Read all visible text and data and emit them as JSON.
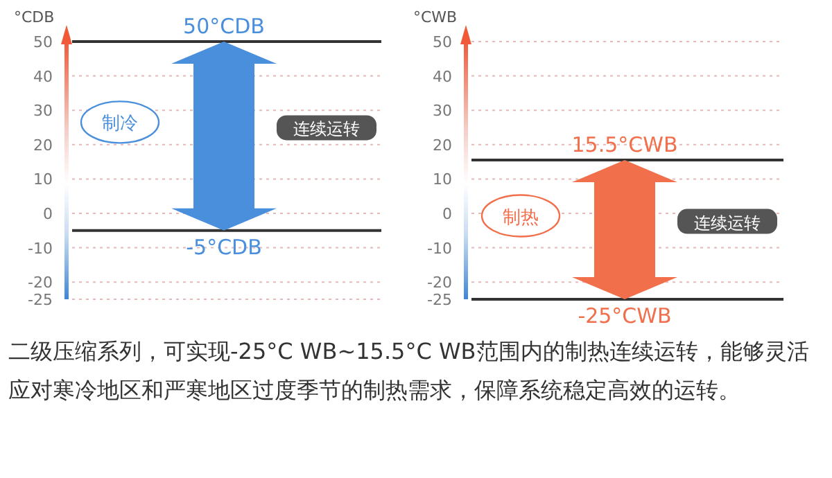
{
  "chart_data": [
    {
      "type": "bar",
      "categories": [
        null
      ],
      "values": [
        55
      ],
      "base": [
        -5
      ],
      "color": "#4a8fdc",
      "ylabel": "°CDB",
      "ylim": [
        -25,
        50
      ],
      "yticks": [
        -25,
        -20,
        -10,
        0,
        10,
        20,
        30,
        40,
        50
      ],
      "grid": "y",
      "ref_lines": [
        {
          "axis": "y",
          "value": 50,
          "color": "#333333"
        },
        {
          "axis": "y",
          "value": -5,
          "color": "#333333"
        }
      ],
      "annotations": [
        {
          "text": "50°CDB",
          "y": 50
        },
        {
          "text": "-5°CDB",
          "y": -5
        },
        "制冷",
        "连续运转"
      ]
    },
    {
      "type": "bar",
      "categories": [
        null
      ],
      "values": [
        40.5
      ],
      "base": [
        -25
      ],
      "color": "#f26f4c",
      "ylabel": "°CWB",
      "ylim": [
        -25,
        50
      ],
      "yticks": [
        -25,
        -20,
        -10,
        0,
        10,
        20,
        30,
        40,
        50
      ],
      "grid": "y",
      "ref_lines": [
        {
          "axis": "y",
          "value": 15.5,
          "color": "#333333"
        },
        {
          "axis": "y",
          "value": -25,
          "color": "#333333"
        }
      ],
      "annotations": [
        {
          "text": "15.5°CWB",
          "y": 15.5
        },
        {
          "text": "-25°CWB",
          "y": -25
        },
        "制热",
        "连续运转",
        "二级压缩系列，可实现-25°C WB~15.5°C WB范围内的制热连续运转，能够灵活应对寒冷地区和严寒地区过度季节的制热需求，保障系统稳定高效的运转。"
      ]
    }
  ]
}
